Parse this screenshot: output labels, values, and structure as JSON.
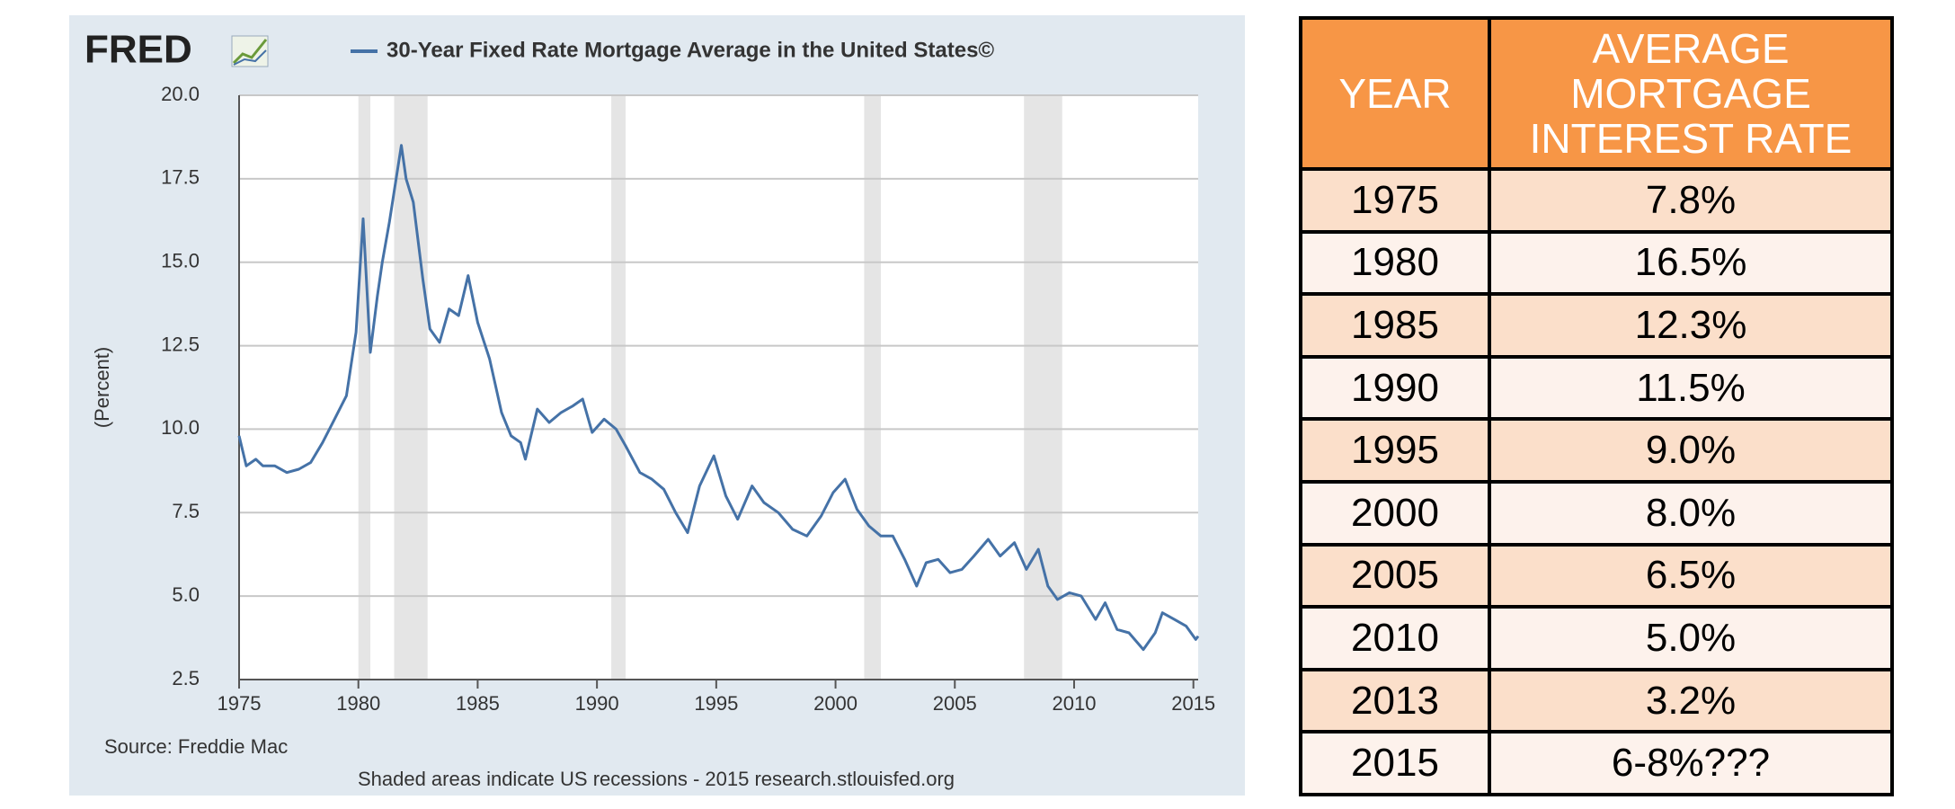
{
  "chart_data": {
    "type": "line",
    "logo": "FRED",
    "series": [
      {
        "name": "30-Year Fixed Rate Mortgage Average in the United States©",
        "color": "#4572a7",
        "values": [
          9.8,
          8.9,
          9.1,
          8.9,
          8.9,
          8.7,
          8.8,
          9.0,
          9.6,
          10.3,
          11.0,
          12.9,
          16.3,
          12.3,
          14.0,
          15.0,
          16.2,
          18.5,
          17.5,
          16.8,
          14.5,
          13.0,
          12.6,
          13.6,
          13.4,
          14.6,
          13.2,
          12.1,
          10.5,
          9.8,
          9.6,
          9.1,
          10.6,
          10.2,
          10.5,
          10.7,
          10.9,
          9.9,
          10.3,
          10.0,
          9.5,
          8.7,
          8.5,
          8.2,
          7.5,
          6.9,
          8.3,
          9.2,
          8.0,
          7.3,
          8.3,
          7.8,
          7.5,
          7.0,
          6.8,
          7.4,
          8.1,
          8.5,
          7.6,
          7.1,
          6.8,
          6.8,
          6.1,
          5.3,
          6.0,
          6.1,
          5.7,
          5.8,
          6.2,
          6.7,
          6.2,
          6.6,
          5.8,
          6.4,
          5.3,
          4.9,
          5.1,
          5.0,
          4.3,
          4.8,
          4.0,
          3.9,
          3.4,
          3.9,
          4.5,
          4.3,
          4.1,
          3.7,
          3.8
        ]
      }
    ],
    "x": [
      1975.0,
      1975.3,
      1975.7,
      1976.0,
      1976.5,
      1977.0,
      1977.5,
      1978.0,
      1978.5,
      1979.0,
      1979.5,
      1979.9,
      1980.2,
      1980.5,
      1980.8,
      1981.0,
      1981.3,
      1981.8,
      1982.0,
      1982.3,
      1982.7,
      1983.0,
      1983.4,
      1983.8,
      1984.2,
      1984.6,
      1985.0,
      1985.5,
      1986.0,
      1986.4,
      1986.8,
      1987.0,
      1987.5,
      1988.0,
      1988.5,
      1989.0,
      1989.4,
      1989.8,
      1990.3,
      1990.8,
      1991.2,
      1991.8,
      1992.3,
      1992.8,
      1993.3,
      1993.8,
      1994.3,
      1994.9,
      1995.4,
      1995.9,
      1996.5,
      1997.0,
      1997.6,
      1998.2,
      1998.8,
      1999.4,
      1999.9,
      2000.4,
      2000.9,
      2001.4,
      2001.9,
      2002.4,
      2002.9,
      2003.4,
      2003.8,
      2004.3,
      2004.8,
      2005.3,
      2005.8,
      2006.4,
      2006.9,
      2007.5,
      2008.0,
      2008.5,
      2008.9,
      2009.3,
      2009.8,
      2010.3,
      2010.9,
      2011.3,
      2011.8,
      2012.3,
      2012.9,
      2013.4,
      2013.7,
      2014.2,
      2014.7,
      2015.1,
      2015.2
    ],
    "recessions": [
      [
        1980.0,
        1980.5
      ],
      [
        1981.5,
        1982.9
      ],
      [
        1990.6,
        1991.2
      ],
      [
        2001.2,
        2001.9
      ],
      [
        2007.9,
        2009.5
      ]
    ],
    "recession_color": "#e5e5e5",
    "xlim": [
      1975,
      2015.2
    ],
    "xticks": [
      1975,
      1980,
      1985,
      1990,
      1995,
      2000,
      2005,
      2010,
      2015
    ],
    "ylim": [
      2.5,
      20
    ],
    "yticks": [
      2.5,
      {
        "value": 5,
        "label": "5.0"
      },
      7.5,
      {
        "value": 10,
        "label": "10.0"
      },
      12.5,
      {
        "value": 15,
        "label": "15.0"
      },
      17.5,
      {
        "value": 20,
        "label": "20.0"
      }
    ],
    "grid": true,
    "y_label": "(Percent)",
    "source": "Source: Freddie Mac",
    "note": "Shaded areas indicate US recessions - 2015 research.stlouisfed.org"
  },
  "table": {
    "header": [
      "YEAR",
      "AVERAGE MORTGAGE INTEREST RATE"
    ],
    "rows": [
      [
        "1975",
        "7.8%"
      ],
      [
        "1980",
        "16.5%"
      ],
      [
        "1985",
        "12.3%"
      ],
      [
        "1990",
        "11.5%"
      ],
      [
        "1995",
        "9.0%"
      ],
      [
        "2000",
        "8.0%"
      ],
      [
        "2005",
        "6.5%"
      ],
      [
        "2010",
        "5.0%"
      ],
      [
        "2013",
        "3.2%"
      ],
      [
        "2015",
        "6-8%???"
      ]
    ]
  }
}
